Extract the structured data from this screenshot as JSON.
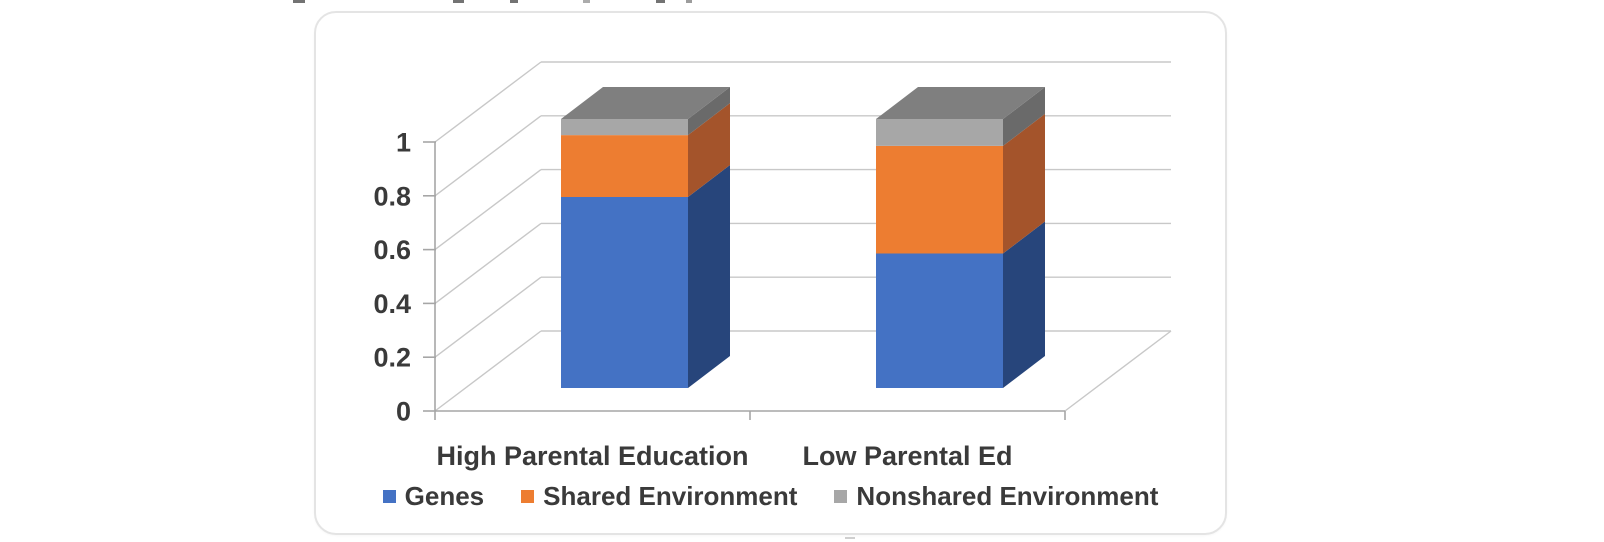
{
  "chart_data": {
    "type": "bar",
    "subtype": "3d-stacked-column",
    "title": "",
    "xlabel": "",
    "ylabel": "",
    "categories": [
      "High Parental Education",
      "Low Parental Ed"
    ],
    "series": [
      {
        "name": "Genes",
        "values": [
          0.71,
          0.5
        ],
        "color": "#4472c4",
        "side_color": "#27457b",
        "top_color": "#35589b"
      },
      {
        "name": "Shared Environment",
        "values": [
          0.23,
          0.4
        ],
        "color": "#ed7d31",
        "side_color": "#a4542b",
        "top_color": "#c2611f"
      },
      {
        "name": "Nonshared Environment",
        "values": [
          0.06,
          0.1
        ],
        "color": "#a7a7a7",
        "side_color": "#6a6a6a",
        "top_color": "#7f7f7f"
      }
    ],
    "ylim": [
      0,
      1
    ],
    "yticks": [
      {
        "value": 0,
        "label": "0"
      },
      {
        "value": 0.2,
        "label": "0.2"
      },
      {
        "value": 0.4,
        "label": "0.4"
      },
      {
        "value": 0.6,
        "label": "0.6"
      },
      {
        "value": 0.8,
        "label": "0.8"
      },
      {
        "value": 1,
        "label": "1"
      }
    ],
    "grid": true,
    "legend_position": "bottom",
    "style": {
      "grid_color": "#c8c8c8",
      "axis_color": "#a6a6a6",
      "text_color": "#3a3a3a"
    }
  }
}
